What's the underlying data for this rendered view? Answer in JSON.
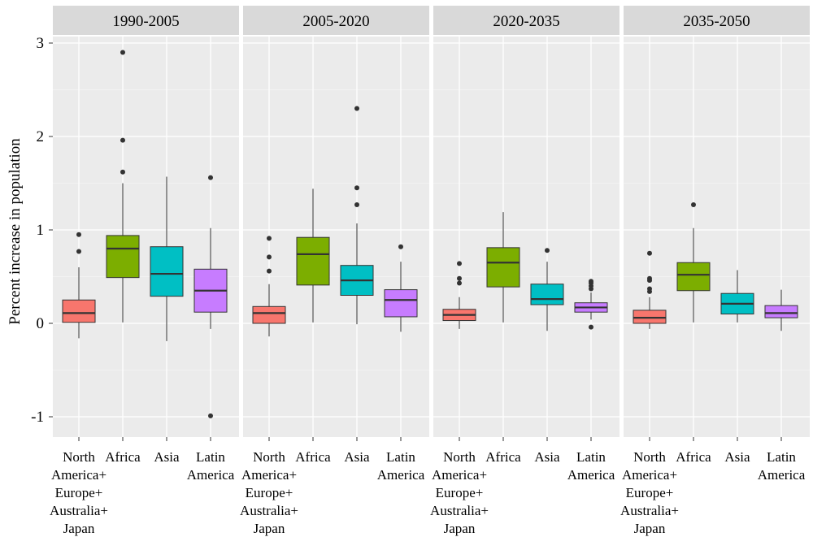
{
  "chart_data": {
    "type": "box",
    "ylabel": "Percent increase in population",
    "ylim": [
      -1.25,
      3.12
    ],
    "yticks": [
      3,
      2,
      1,
      0,
      -1
    ],
    "ytick_labels": [
      "3",
      "2",
      "1",
      "0",
      "-1"
    ],
    "grid": true,
    "categories": [
      [
        "North",
        "America+",
        "Europe+",
        "Australia+",
        "Japan"
      ],
      [
        "Africa"
      ],
      [
        "Asia"
      ],
      [
        "Latin",
        "America"
      ]
    ],
    "colors": [
      "#F8766D",
      "#7CAE00",
      "#00BFC4",
      "#C77CFF"
    ],
    "panels": [
      {
        "title": "1990-2005",
        "boxes": [
          {
            "q1": 0.01,
            "median": 0.11,
            "q3": 0.25,
            "whisker_low": -0.16,
            "whisker_high": 0.6,
            "outliers": [
              0.77,
              0.95
            ]
          },
          {
            "q1": 0.49,
            "median": 0.8,
            "q3": 0.94,
            "whisker_low": 0.01,
            "whisker_high": 1.5,
            "outliers": [
              1.62,
              1.96,
              2.9
            ]
          },
          {
            "q1": 0.29,
            "median": 0.53,
            "q3": 0.82,
            "whisker_low": -0.19,
            "whisker_high": 1.57,
            "outliers": []
          },
          {
            "q1": 0.12,
            "median": 0.35,
            "q3": 0.58,
            "whisker_low": -0.06,
            "whisker_high": 1.02,
            "outliers": [
              1.56,
              -0.99
            ]
          }
        ]
      },
      {
        "title": "2005-2020",
        "boxes": [
          {
            "q1": 0.0,
            "median": 0.11,
            "q3": 0.18,
            "whisker_low": -0.14,
            "whisker_high": 0.42,
            "outliers": [
              0.56,
              0.71,
              0.91
            ]
          },
          {
            "q1": 0.41,
            "median": 0.74,
            "q3": 0.92,
            "whisker_low": 0.01,
            "whisker_high": 1.44,
            "outliers": []
          },
          {
            "q1": 0.3,
            "median": 0.46,
            "q3": 0.62,
            "whisker_low": -0.01,
            "whisker_high": 1.07,
            "outliers": [
              1.27,
              1.45,
              2.3
            ]
          },
          {
            "q1": 0.07,
            "median": 0.25,
            "q3": 0.36,
            "whisker_low": -0.09,
            "whisker_high": 0.66,
            "outliers": [
              0.82
            ]
          }
        ]
      },
      {
        "title": "2020-2035",
        "boxes": [
          {
            "q1": 0.03,
            "median": 0.09,
            "q3": 0.15,
            "whisker_low": -0.06,
            "whisker_high": 0.28,
            "outliers": [
              0.43,
              0.48,
              0.64
            ]
          },
          {
            "q1": 0.39,
            "median": 0.65,
            "q3": 0.81,
            "whisker_low": 0.01,
            "whisker_high": 1.19,
            "outliers": []
          },
          {
            "q1": 0.2,
            "median": 0.26,
            "q3": 0.42,
            "whisker_low": -0.08,
            "whisker_high": 0.66,
            "outliers": [
              0.78
            ]
          },
          {
            "q1": 0.12,
            "median": 0.17,
            "q3": 0.22,
            "whisker_low": 0.04,
            "whisker_high": 0.33,
            "outliers": [
              0.37,
              0.4,
              0.43,
              0.45,
              -0.04
            ]
          }
        ]
      },
      {
        "title": "2035-2050",
        "boxes": [
          {
            "q1": 0.0,
            "median": 0.06,
            "q3": 0.14,
            "whisker_low": -0.06,
            "whisker_high": 0.28,
            "outliers": [
              0.34,
              0.37,
              0.46,
              0.48,
              0.75
            ]
          },
          {
            "q1": 0.35,
            "median": 0.52,
            "q3": 0.65,
            "whisker_low": 0.01,
            "whisker_high": 1.02,
            "outliers": [
              1.27
            ]
          },
          {
            "q1": 0.1,
            "median": 0.21,
            "q3": 0.32,
            "whisker_low": 0.01,
            "whisker_high": 0.57,
            "outliers": []
          },
          {
            "q1": 0.06,
            "median": 0.11,
            "q3": 0.19,
            "whisker_low": -0.08,
            "whisker_high": 0.36,
            "outliers": []
          }
        ]
      }
    ]
  }
}
